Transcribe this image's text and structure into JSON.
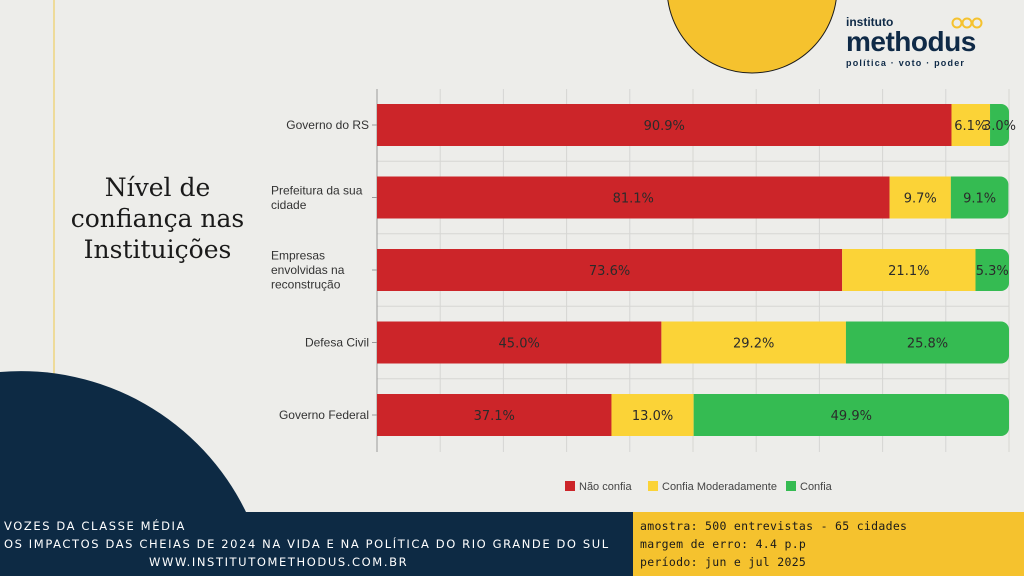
{
  "title_lines": [
    "Nível de",
    "confiança nas",
    "Instituições"
  ],
  "logo": {
    "prefix": "instituto",
    "name": "methodus",
    "tagline": "política · voto · poder"
  },
  "colors": {
    "nao_confia": "#cc2529",
    "moderado": "#fbd337",
    "confia": "#35bb52",
    "navy": "#0d2a44",
    "yellow": "#f5c22e",
    "background": "#ededea"
  },
  "chart_data": {
    "type": "bar",
    "orientation": "horizontal",
    "stacked": true,
    "categories": [
      "Governo do RS",
      "Prefeitura da sua cidade",
      "Empresas envolvidas na reconstrução",
      "Defesa Civil",
      "Governo Federal"
    ],
    "category_lines": [
      [
        "Governo do RS"
      ],
      [
        "Prefeitura da sua",
        "cidade"
      ],
      [
        "Empresas",
        "envolvidas na",
        "reconstrução"
      ],
      [
        "Defesa Civil"
      ],
      [
        "Governo Federal"
      ]
    ],
    "series": [
      {
        "name": "Não confia",
        "values": [
          90.9,
          81.1,
          73.6,
          45.0,
          37.1
        ],
        "labels": [
          "90.9%",
          "81.1%",
          "73.6%",
          "45.0%",
          "37.1%"
        ]
      },
      {
        "name": "Confia Moderadamente",
        "values": [
          6.1,
          9.7,
          21.1,
          29.2,
          13.0
        ],
        "labels": [
          "6.1%",
          "9.7%",
          "21.1%",
          "29.2%",
          "13.0%"
        ]
      },
      {
        "name": "Confia",
        "values": [
          3.0,
          9.1,
          5.3,
          25.8,
          49.9
        ],
        "labels": [
          "3.0%",
          "9.1%",
          "5.3%",
          "25.8%",
          "49.9%"
        ]
      }
    ],
    "xlim": [
      0,
      100
    ],
    "grid": true,
    "legend_position": "bottom"
  },
  "footer": {
    "line1": "VOZES DA CLASSE MÉDIA",
    "line2": "OS IMPACTOS DAS CHEIAS DE 2024 NA VIDA E NA POLÍTICA DO RIO GRANDE DO SUL",
    "line3": "WWW.INSTITUTOMETHODUS.COM.BR",
    "amostra": "amostra: 500 entrevistas - 65 cidades",
    "margem": "margem de erro: 4.4 p.p",
    "periodo": "período: jun e jul 2025"
  }
}
